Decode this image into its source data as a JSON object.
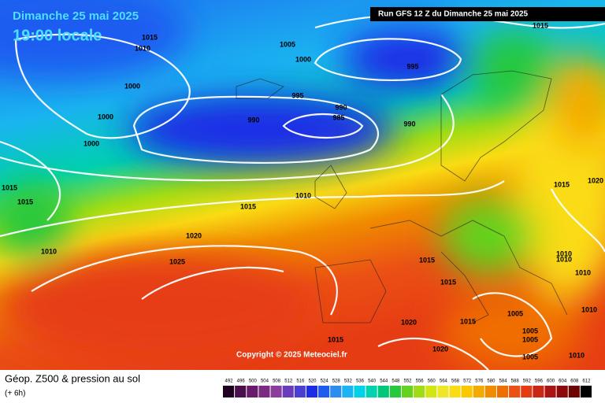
{
  "header": {
    "date": "Dimanche 25 mai 2025",
    "time": "19:00 locale",
    "run": "Run GFS 12 Z du Dimanche 25 mai 2025"
  },
  "isobar_labels": [
    1015,
    1010,
    1005,
    1000,
    995,
    1000,
    1000,
    1000,
    995,
    990,
    990,
    985,
    990,
    1015,
    1015,
    1015,
    1010,
    1015,
    1010,
    1020,
    1025,
    1015,
    1020,
    1015,
    1015,
    1010,
    1010,
    1010,
    1005,
    1010,
    1015,
    1020,
    1005,
    1005,
    1015,
    1020,
    1005,
    1010
  ],
  "copyright": "Copyright © 2025 Meteociel.fr",
  "footer": {
    "title": "Géop. Z500 & pression au sol",
    "step": "(+ 6h)"
  },
  "colorbar": {
    "values": [
      492,
      496,
      500,
      504,
      508,
      512,
      516,
      520,
      524,
      528,
      532,
      536,
      540,
      544,
      548,
      552,
      556,
      560,
      564,
      568,
      572,
      576,
      580,
      584,
      588,
      592,
      596,
      600,
      604,
      608,
      612
    ],
    "colors": [
      "#200020",
      "#4b0f4b",
      "#6a1a6a",
      "#7b2c82",
      "#8c3c9c",
      "#6a3cbc",
      "#4a40d0",
      "#1c2ce8",
      "#1e5cf0",
      "#2c8cf0",
      "#1ab4f0",
      "#00d0e8",
      "#00d2b0",
      "#00c878",
      "#28c83c",
      "#64d21e",
      "#a0dc14",
      "#d2e614",
      "#f0e628",
      "#fadc14",
      "#fac800",
      "#f5aa00",
      "#f08c00",
      "#f06e00",
      "#eb5014",
      "#e63c14",
      "#c82814",
      "#aa1414",
      "#8c0a0a",
      "#6e0505",
      "#000000"
    ]
  }
}
